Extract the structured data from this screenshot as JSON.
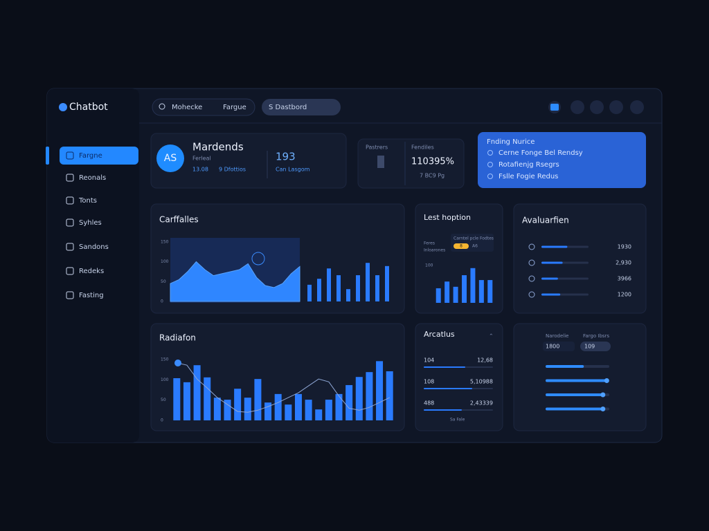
{
  "brand": "Chatbot",
  "topbar": {
    "search": [
      "Mohecke",
      "Fargue"
    ],
    "tab": "S Dastbord"
  },
  "sidebar": {
    "items": [
      "Fargne",
      "Reonals",
      "Tonts",
      "Syhles",
      "Sandons",
      "Redeks",
      "Fasting"
    ]
  },
  "profile": {
    "avatar": "AS",
    "name": "Mardends",
    "role": "Ferleal",
    "stat1": "13.08",
    "stat2": "9 Dfottios",
    "count": "193",
    "count_label": "Can Lasgom"
  },
  "metrics": {
    "label1": "Pastrers",
    "label2": "Fendiles",
    "value": "110395%",
    "note": "7 BC9 Pg"
  },
  "notice": {
    "title": "Fnding Nurice",
    "items": [
      "Cerne Fonge Bel Rendsy",
      "Rotafienjg Rsegrs",
      "Fslle Fogie Redus"
    ]
  },
  "carffalles": {
    "title": "Carffalles",
    "ylim": [
      0,
      160
    ],
    "yticks": [
      0,
      50,
      100,
      150
    ],
    "area": [
      45,
      55,
      75,
      100,
      80,
      65,
      70,
      75,
      80,
      95,
      60,
      40,
      35,
      45,
      70,
      88
    ],
    "bars": [
      42,
      57,
      83,
      66,
      31,
      66,
      97,
      66,
      89
    ]
  },
  "lest": {
    "title": "Lest hoption",
    "legend": [
      "Feres",
      "Inloarones"
    ],
    "badge": "Carntel pcle Fodtes",
    "badge_value": "8",
    "badge_tag": "A6",
    "ylim": [
      0,
      150
    ],
    "yticks": [
      100
    ],
    "bars": [
      39,
      57,
      43,
      74,
      93,
      61,
      61
    ]
  },
  "aval": {
    "title": "Avaluarfien",
    "xlim": [
      0,
      100
    ],
    "rows": [
      {
        "value": "1930",
        "fill": 55
      },
      {
        "value": "2,930",
        "fill": 45
      },
      {
        "value": "3966",
        "fill": 35
      },
      {
        "value": "1200",
        "fill": 40
      }
    ]
  },
  "radiafon": {
    "title": "Radiafon",
    "ylim": [
      0,
      150
    ],
    "yticks": [
      0,
      50,
      100,
      150
    ],
    "bars": [
      104,
      94,
      136,
      106,
      56,
      51,
      78,
      56,
      102,
      44,
      65,
      39,
      65,
      51,
      27,
      51,
      65,
      87,
      107,
      119,
      146,
      121
    ],
    "line": [
      142,
      136,
      102,
      80,
      56,
      39,
      22,
      20,
      25,
      34,
      44,
      56,
      68,
      85,
      102,
      95,
      60,
      30,
      25,
      32,
      44,
      56
    ]
  },
  "arcatlus": {
    "title": "Arcatlus",
    "xlim": [
      0,
      100
    ],
    "rows": [
      {
        "label": "104",
        "value": "12,68",
        "fill": 60
      },
      {
        "label": "108",
        "value": "5,10988",
        "fill": 70
      },
      {
        "label": "488",
        "value": "2,43339",
        "fill": 55
      }
    ],
    "footer": "Sa Fale"
  },
  "controls": {
    "labels": [
      "Narodelie",
      "Fargo Ibsrs"
    ],
    "inputs": [
      "1800",
      "109"
    ],
    "xlim": [
      0,
      100
    ],
    "sliders": [
      60,
      96,
      90,
      90
    ]
  }
}
